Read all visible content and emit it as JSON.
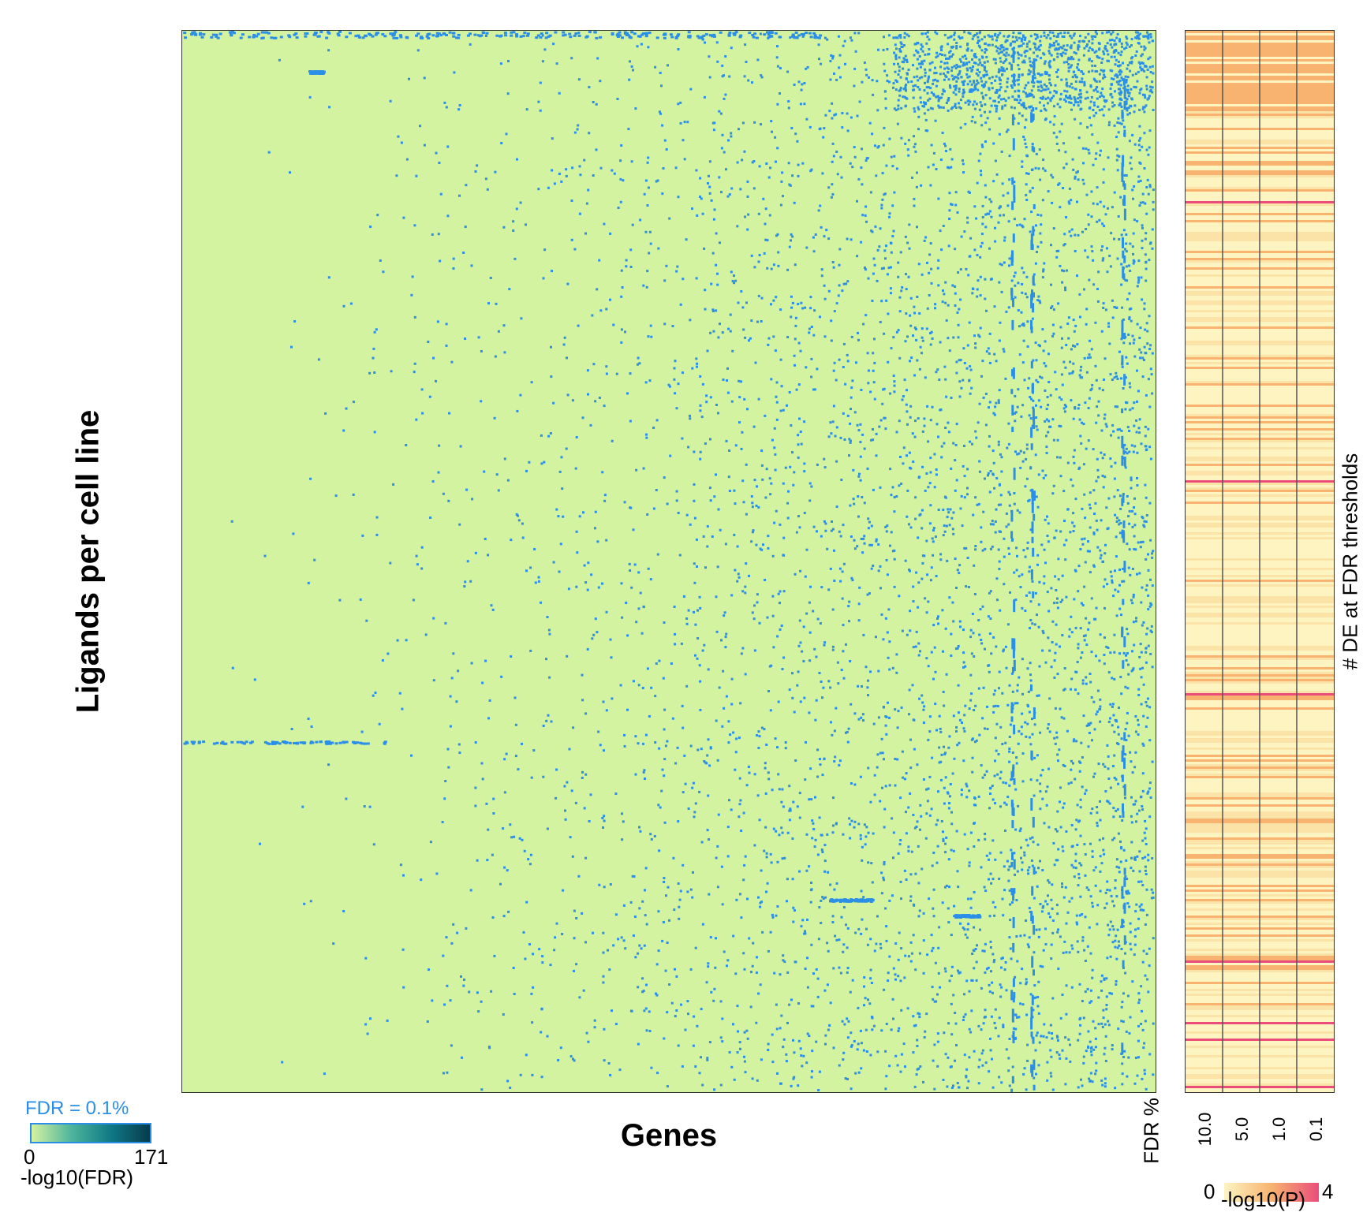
{
  "chart_data": [
    {
      "type": "heatmap",
      "xlabel": "Genes",
      "ylabel": "Ligands per cell line",
      "colors": {
        "background": "#d4f3a1",
        "significant": "#2b8fe8"
      },
      "threshold_legend": {
        "title": "FDR = 0.1%",
        "min": "0",
        "max": "171",
        "label": "-log10(FDR)",
        "colors": [
          "#d4f3a1",
          "#4fb59c",
          "#0f7a86",
          "#073b4c"
        ]
      }
    },
    {
      "type": "heatmap",
      "title": "# DE at FDR thresholds",
      "xlabel": "FDR %",
      "columns": [
        "10.0",
        "5.0",
        "1.0",
        "0.1"
      ],
      "colorbar": {
        "min": "0",
        "max": "4",
        "label": "-log10(P)",
        "colors": [
          "#fdf4c2",
          "#f7b36f",
          "#ea4d7c"
        ]
      }
    }
  ]
}
